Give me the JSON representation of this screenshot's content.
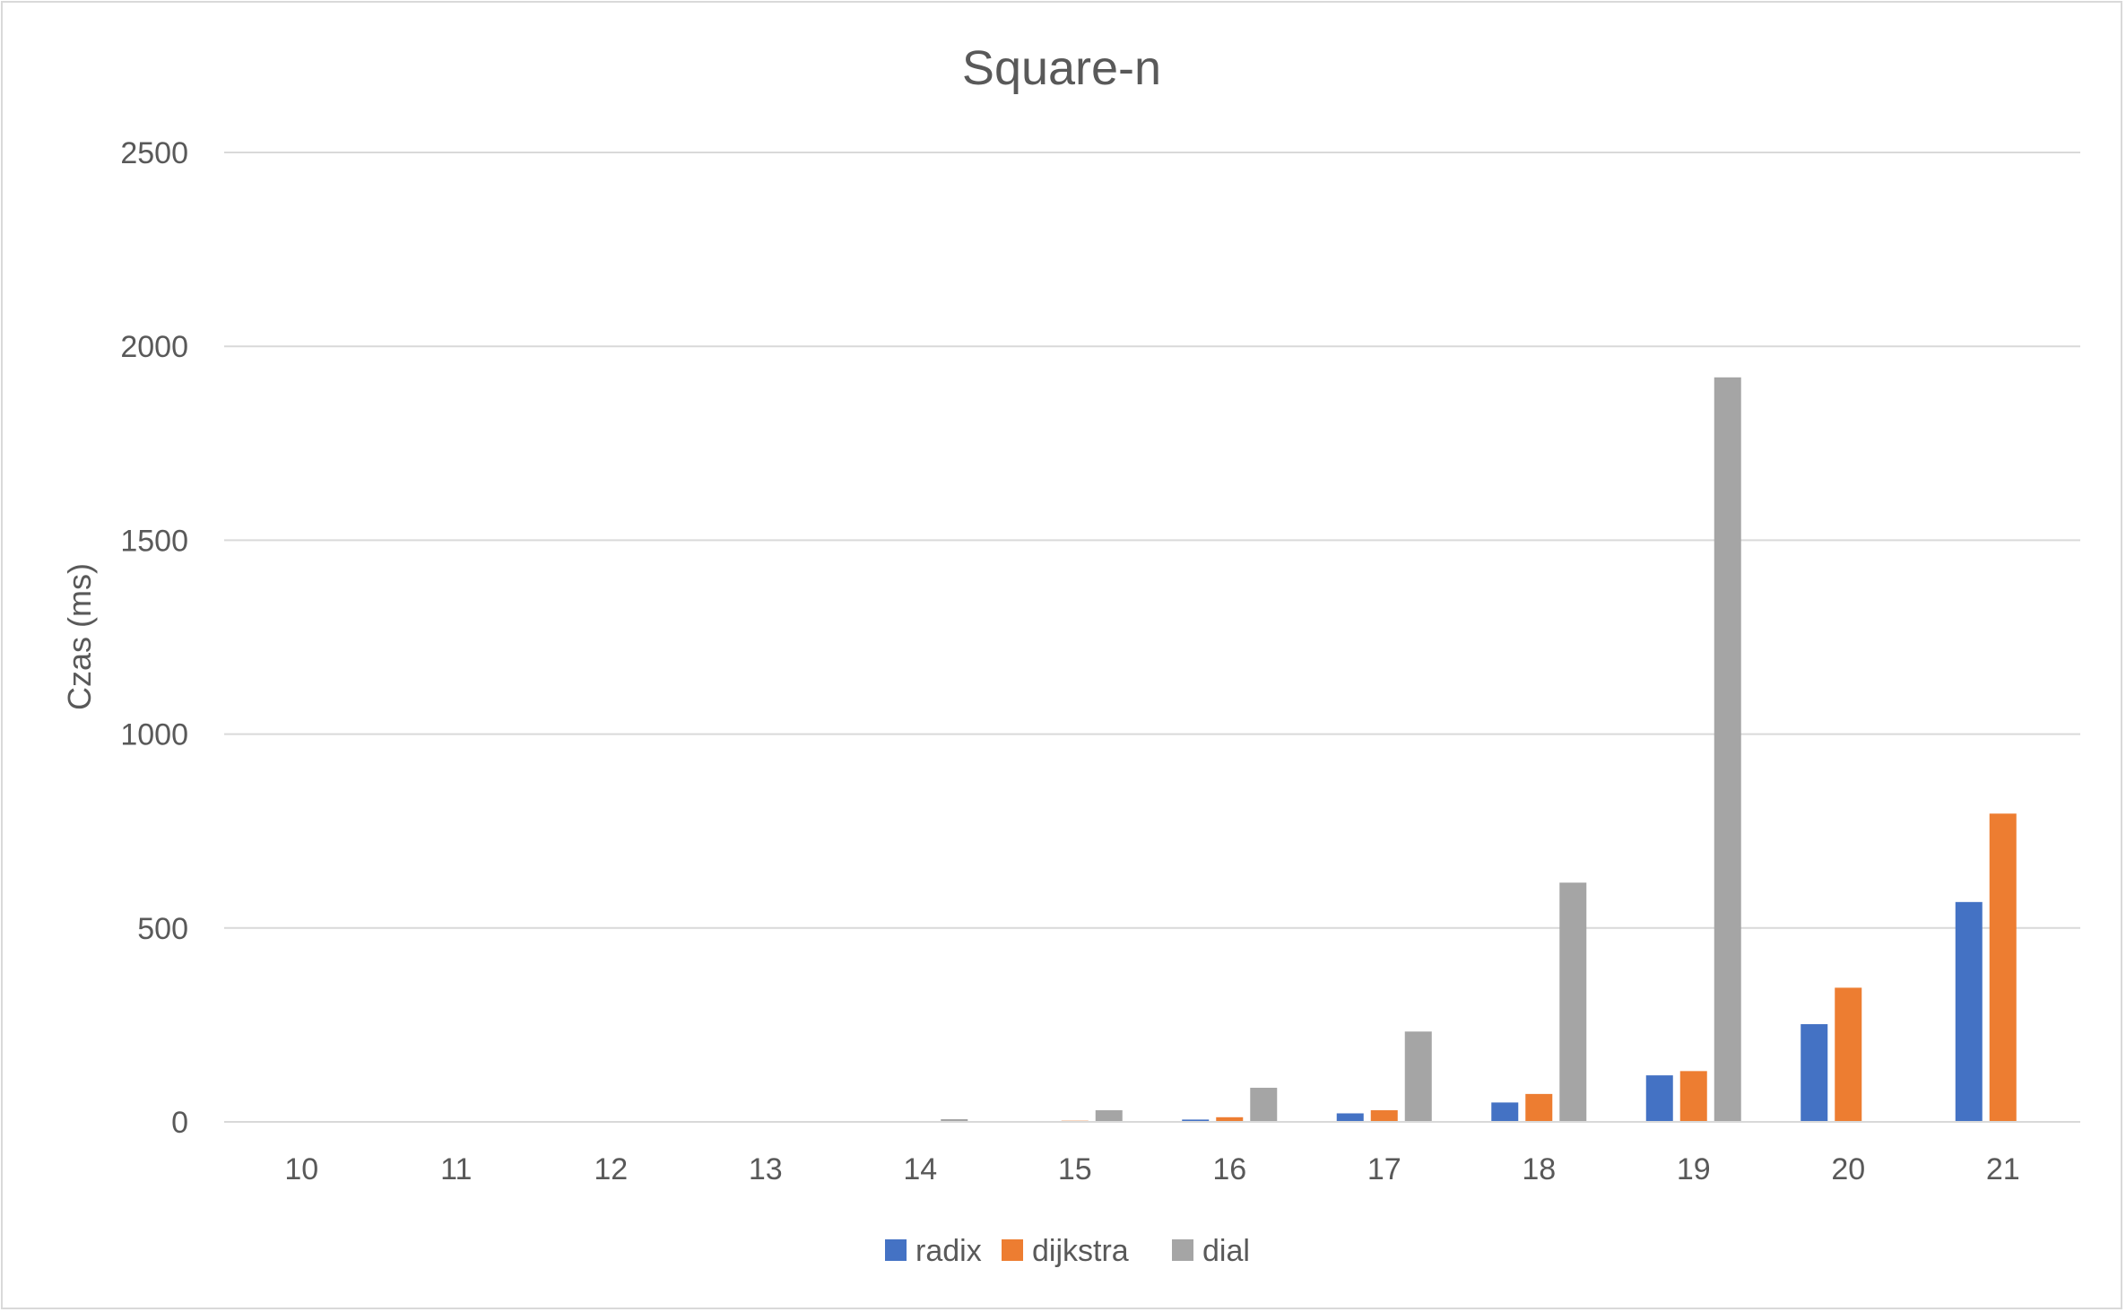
{
  "chart_data": {
    "type": "bar",
    "title": "Square-n",
    "xlabel": "",
    "ylabel": "Czas (ms)",
    "ylim": [
      0,
      2500
    ],
    "yticks": [
      0,
      500,
      1000,
      1500,
      2000,
      2500
    ],
    "grid": true,
    "legend_position": "bottom",
    "categories": [
      "10",
      "11",
      "12",
      "13",
      "14",
      "15",
      "16",
      "17",
      "18",
      "19",
      "20",
      "21"
    ],
    "series": [
      {
        "name": "radix",
        "color": "#4472C4",
        "values": [
          0,
          0,
          0,
          0,
          1,
          2,
          6,
          22,
          50,
          120,
          252,
          567
        ]
      },
      {
        "name": "dijkstra",
        "color": "#ED7D31",
        "values": [
          0,
          0,
          0,
          0,
          1,
          3,
          12,
          30,
          72,
          131,
          346,
          795
        ]
      },
      {
        "name": "dial",
        "color": "#A5A5A5",
        "values": [
          0,
          0,
          0,
          1,
          7,
          30,
          88,
          233,
          617,
          1920,
          null,
          null
        ]
      }
    ]
  }
}
